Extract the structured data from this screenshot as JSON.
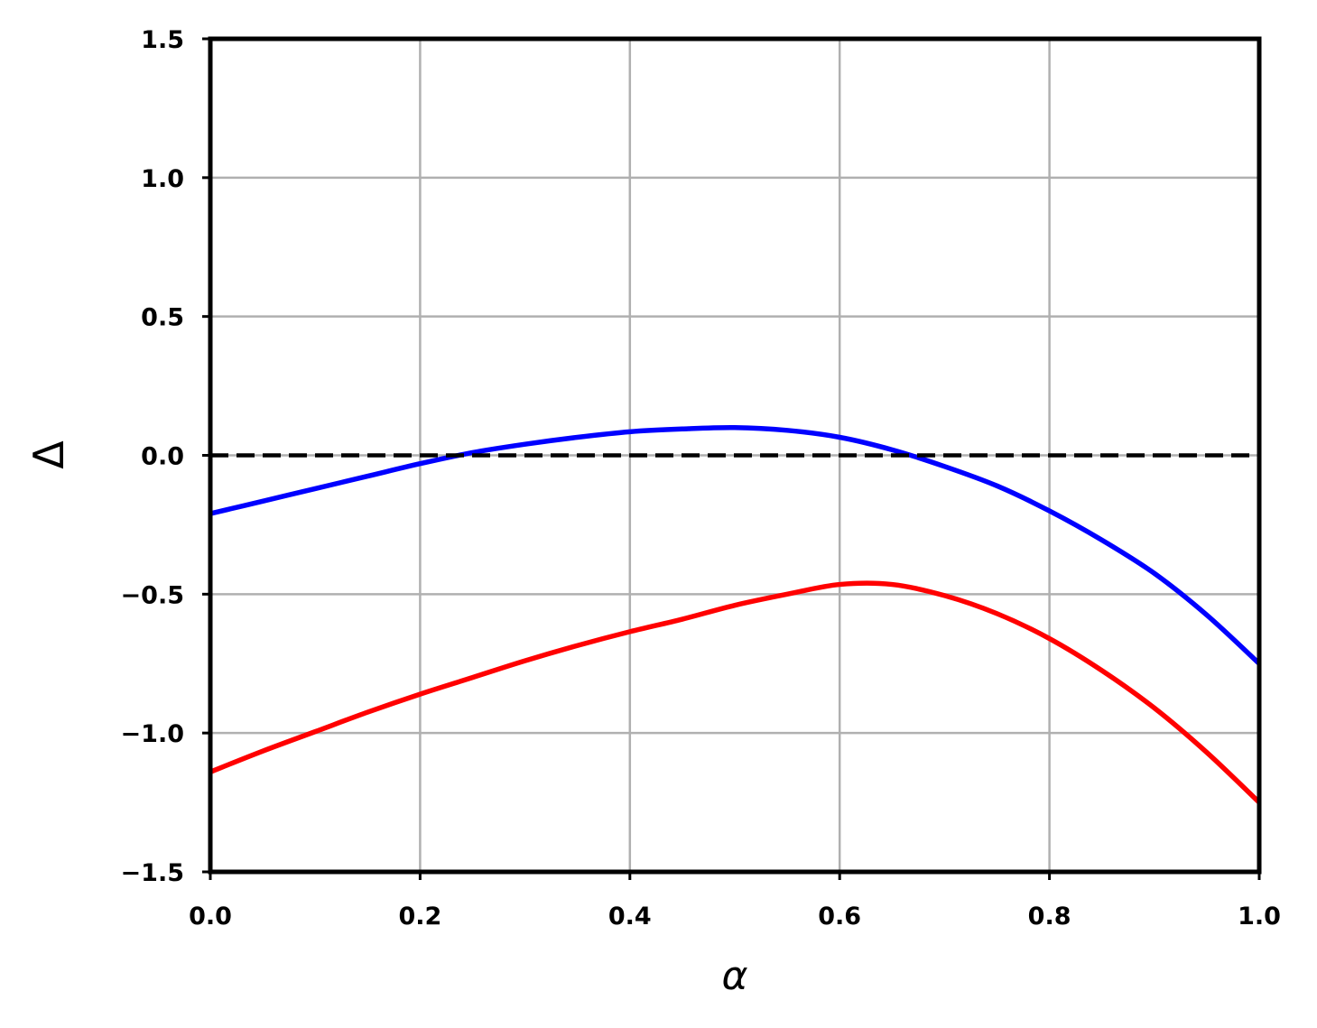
{
  "chart_data": {
    "type": "line",
    "xlabel": "α",
    "ylabel": "Δ",
    "xlim": [
      0.0,
      1.0
    ],
    "ylim": [
      -1.5,
      1.5
    ],
    "xticks": [
      "0.0",
      "0.2",
      "0.4",
      "0.6",
      "0.8",
      "1.0"
    ],
    "xtick_values": [
      0.0,
      0.2,
      0.4,
      0.6,
      0.8,
      1.0
    ],
    "yticks": [
      "−1.5",
      "−1.0",
      "−0.5",
      "0.0",
      "0.5",
      "1.0",
      "1.5"
    ],
    "ytick_values": [
      -1.5,
      -1.0,
      -0.5,
      0.0,
      0.5,
      1.0,
      1.5
    ],
    "grid": true,
    "series": [
      {
        "color": "#0000ff",
        "style": "solid",
        "x": [
          0.0,
          0.05,
          0.1,
          0.15,
          0.2,
          0.25,
          0.3,
          0.35,
          0.4,
          0.45,
          0.5,
          0.55,
          0.6,
          0.65,
          0.7,
          0.75,
          0.8,
          0.85,
          0.9,
          0.95,
          1.0
        ],
        "y": [
          -0.21,
          -0.165,
          -0.12,
          -0.075,
          -0.03,
          0.01,
          0.04,
          0.065,
          0.085,
          0.095,
          0.1,
          0.09,
          0.065,
          0.02,
          -0.04,
          -0.11,
          -0.2,
          -0.305,
          -0.425,
          -0.575,
          -0.75
        ]
      },
      {
        "color": "#ff0000",
        "style": "solid",
        "x": [
          0.0,
          0.05,
          0.1,
          0.15,
          0.2,
          0.25,
          0.3,
          0.35,
          0.4,
          0.45,
          0.5,
          0.55,
          0.6,
          0.65,
          0.7,
          0.75,
          0.8,
          0.85,
          0.9,
          0.95,
          1.0
        ],
        "y": [
          -1.14,
          -1.065,
          -0.995,
          -0.925,
          -0.86,
          -0.8,
          -0.74,
          -0.685,
          -0.635,
          -0.59,
          -0.54,
          -0.5,
          -0.465,
          -0.465,
          -0.505,
          -0.57,
          -0.66,
          -0.775,
          -0.91,
          -1.07,
          -1.25
        ]
      },
      {
        "color": "#000000",
        "style": "dashed",
        "x": [
          0.0,
          1.0
        ],
        "y": [
          0.0,
          0.0
        ]
      }
    ]
  }
}
